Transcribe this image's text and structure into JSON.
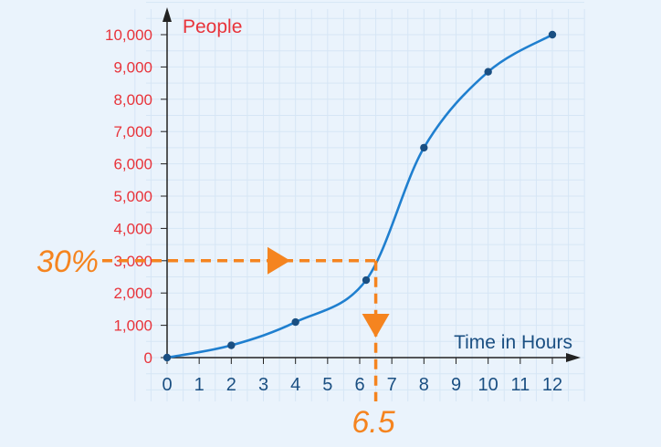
{
  "chart_data": {
    "type": "line",
    "ylabel": "People",
    "xlabel": "Time in Hours",
    "x_ticks": [
      "0",
      "1",
      "2",
      "3",
      "4",
      "5",
      "6",
      "7",
      "8",
      "9",
      "10",
      "11",
      "12"
    ],
    "y_ticks": [
      "0",
      "1,000",
      "2,000",
      "3,000",
      "4,000",
      "5,000",
      "6,000",
      "7,000",
      "8,000",
      "9,000",
      "10,000"
    ],
    "xlim": [
      0,
      12
    ],
    "ylim": [
      0,
      10000
    ],
    "grid": true,
    "series": [
      {
        "x": [
          0,
          2,
          4,
          6.2,
          8,
          10,
          12
        ],
        "y": [
          0,
          380,
          1100,
          2400,
          6500,
          8850,
          10000
        ],
        "color": "#1f7fcf"
      }
    ],
    "annotation": {
      "y_label": "30%",
      "y_value": 3000,
      "x_label": "6.5",
      "x_value": 6.5,
      "color": "#f5841f"
    },
    "colors": {
      "y_axis_text": "#e8333a",
      "x_axis_text": "#1a4f82",
      "grid": "#d6e6f5",
      "axis": "#222222",
      "point": "#1a4f82",
      "background": "#eaf3fc"
    }
  }
}
